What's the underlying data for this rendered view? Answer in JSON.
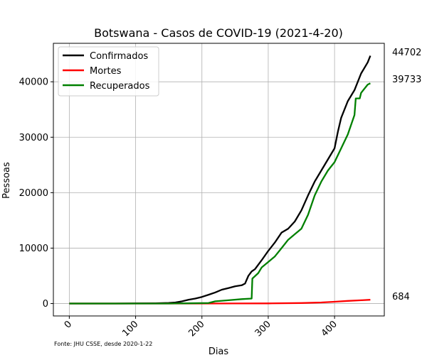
{
  "chart_data": {
    "type": "line",
    "title": "Botswana - Casos de COVID-19 (2021-4-20)",
    "xlabel": "Dias",
    "ylabel": "Pessoas",
    "xlim": [
      -24,
      475
    ],
    "ylim": [
      -2235,
      46937
    ],
    "xticks": [
      0,
      100,
      200,
      300,
      400
    ],
    "yticks": [
      0,
      10000,
      20000,
      30000,
      40000
    ],
    "grid": true,
    "legend_position": "top-left",
    "source_note": "Fonte: JHU CSSE, desde 2020-1-22",
    "end_labels": [
      "44702",
      "684",
      "39733"
    ],
    "series": [
      {
        "name": "Confirmados",
        "color": "#000000",
        "x": [
          0,
          70,
          100,
          130,
          150,
          160,
          170,
          180,
          190,
          200,
          210,
          220,
          230,
          240,
          250,
          260,
          265,
          270,
          275,
          280,
          290,
          300,
          310,
          320,
          330,
          340,
          350,
          360,
          370,
          380,
          390,
          400,
          405,
          410,
          420,
          430,
          440,
          450,
          454
        ],
        "y": [
          0,
          0,
          30,
          60,
          120,
          200,
          400,
          700,
          900,
          1200,
          1600,
          2000,
          2500,
          2800,
          3100,
          3300,
          3600,
          5000,
          5800,
          6200,
          7800,
          9500,
          11000,
          12800,
          13500,
          14800,
          16800,
          19500,
          22000,
          24000,
          26000,
          28000,
          31000,
          33500,
          36500,
          38500,
          41500,
          43500,
          44702
        ]
      },
      {
        "name": "Mortes",
        "color": "#ff0000",
        "x": [
          0,
          100,
          200,
          250,
          300,
          350,
          380,
          400,
          420,
          440,
          454
        ],
        "y": [
          0,
          1,
          10,
          16,
          31,
          100,
          200,
          320,
          480,
          600,
          684
        ]
      },
      {
        "name": "Recuperados",
        "color": "#008000",
        "x": [
          0,
          150,
          210,
          220,
          240,
          260,
          275,
          276,
          285,
          290,
          300,
          310,
          320,
          330,
          340,
          350,
          360,
          370,
          380,
          390,
          400,
          410,
          420,
          430,
          432,
          438,
          440,
          450,
          454
        ],
        "y": [
          0,
          0,
          100,
          400,
          600,
          800,
          900,
          4500,
          5500,
          6500,
          7500,
          8500,
          10000,
          11500,
          12500,
          13500,
          16000,
          19500,
          22000,
          24000,
          25500,
          28000,
          30500,
          34000,
          37000,
          37000,
          38000,
          39500,
          39733
        ]
      }
    ]
  }
}
